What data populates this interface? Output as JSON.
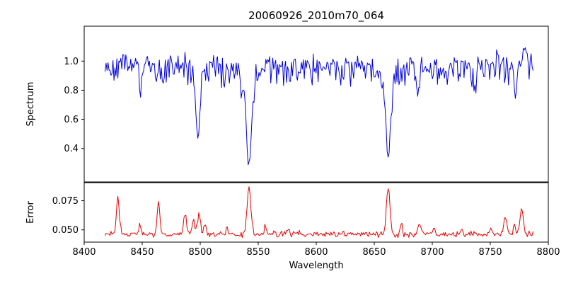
{
  "chart_data": {
    "type": "line",
    "title": "20060926_2010m70_064",
    "xlabel": "Wavelength",
    "x_axis": {
      "min": 8400,
      "max": 8800,
      "ticks": [
        {
          "value": 8400,
          "label": "8400"
        },
        {
          "value": 8450,
          "label": "8450"
        },
        {
          "value": 8500,
          "label": "8500"
        },
        {
          "value": 8550,
          "label": "8550"
        },
        {
          "value": 8600,
          "label": "8600"
        },
        {
          "value": 8650,
          "label": "8650"
        },
        {
          "value": 8700,
          "label": "8700"
        },
        {
          "value": 8750,
          "label": "8750"
        },
        {
          "value": 8800,
          "label": "8800"
        }
      ]
    },
    "x_range_data": [
      8418,
      8787
    ],
    "sample_step": 0.85,
    "panels": [
      {
        "name": "spectrum",
        "ylabel": "Spectrum",
        "color": "#0000e0",
        "ylim": [
          0.17,
          1.24
        ],
        "yticks": [
          {
            "value": 0.4,
            "label": "0.4"
          },
          {
            "value": 0.6,
            "label": "0.6"
          },
          {
            "value": 0.8,
            "label": "0.8"
          },
          {
            "value": 1.0,
            "label": "1.0"
          }
        ],
        "baseline": 0.965,
        "noise_amplitude": 0.04,
        "absorption_lines": [
          {
            "center": 8498,
            "core_depth": 0.42,
            "core_width": 1.6,
            "wing_depth": 0.08,
            "wing_width": 4.0,
            "min_value": 0.47
          },
          {
            "center": 8542,
            "core_depth": 0.52,
            "core_width": 2.0,
            "wing_depth": 0.15,
            "wing_width": 6.0,
            "min_value": 0.31
          },
          {
            "center": 8662,
            "core_depth": 0.52,
            "core_width": 1.9,
            "wing_depth": 0.11,
            "wing_width": 5.0,
            "min_value": 0.34
          }
        ],
        "minor_dips": [
          {
            "center": 8449,
            "depth": 0.12,
            "width": 1.0
          },
          {
            "center": 8521,
            "depth": 0.14,
            "width": 1.0
          },
          {
            "center": 8577,
            "depth": 0.1,
            "width": 0.9
          },
          {
            "center": 8688,
            "depth": 0.2,
            "width": 1.1
          },
          {
            "center": 8713,
            "depth": 0.12,
            "width": 0.9
          },
          {
            "center": 8737,
            "depth": 0.16,
            "width": 1.0
          },
          {
            "center": 8772,
            "depth": 0.22,
            "width": 1.2
          }
        ],
        "minor_peaks": [
          {
            "center": 8434,
            "height": 0.1,
            "width": 1.0
          },
          {
            "center": 8609,
            "height": 0.09,
            "width": 0.9
          },
          {
            "center": 8756,
            "height": 0.09,
            "width": 0.9
          },
          {
            "center": 8780,
            "height": 0.14,
            "width": 1.3
          }
        ]
      },
      {
        "name": "error",
        "ylabel": "Error",
        "color": "#e60000",
        "ylim": [
          0.0395,
          0.0905
        ],
        "yticks": [
          {
            "value": 0.05,
            "label": "0.050"
          },
          {
            "value": 0.075,
            "label": "0.075"
          }
        ],
        "baseline": 0.0455,
        "noise_amplitude": 0.0011,
        "spikes": [
          {
            "center": 8429,
            "peak": 0.0785,
            "width": 1.2
          },
          {
            "center": 8448,
            "peak": 0.054,
            "width": 0.9
          },
          {
            "center": 8464,
            "peak": 0.0755,
            "width": 1.1
          },
          {
            "center": 8487,
            "peak": 0.0615,
            "width": 1.4
          },
          {
            "center": 8494,
            "peak": 0.058,
            "width": 1.1
          },
          {
            "center": 8499,
            "peak": 0.0635,
            "width": 1.3
          },
          {
            "center": 8504,
            "peak": 0.056,
            "width": 1.0
          },
          {
            "center": 8523,
            "peak": 0.05,
            "width": 1.0
          },
          {
            "center": 8542,
            "peak": 0.086,
            "width": 1.6
          },
          {
            "center": 8556,
            "peak": 0.0535,
            "width": 1.0
          },
          {
            "center": 8576,
            "peak": 0.0495,
            "width": 1.0
          },
          {
            "center": 8600,
            "peak": 0.0475,
            "width": 1.2
          },
          {
            "center": 8640,
            "peak": 0.0475,
            "width": 1.0
          },
          {
            "center": 8662,
            "peak": 0.0865,
            "width": 1.5
          },
          {
            "center": 8673,
            "peak": 0.054,
            "width": 1.0
          },
          {
            "center": 8689,
            "peak": 0.0555,
            "width": 1.2
          },
          {
            "center": 8702,
            "peak": 0.05,
            "width": 1.0
          },
          {
            "center": 8725,
            "peak": 0.0485,
            "width": 1.0
          },
          {
            "center": 8750,
            "peak": 0.051,
            "width": 1.0
          },
          {
            "center": 8763,
            "peak": 0.0615,
            "width": 1.3
          },
          {
            "center": 8771,
            "peak": 0.056,
            "width": 1.0
          },
          {
            "center": 8777,
            "peak": 0.0675,
            "width": 1.3
          }
        ]
      }
    ]
  }
}
